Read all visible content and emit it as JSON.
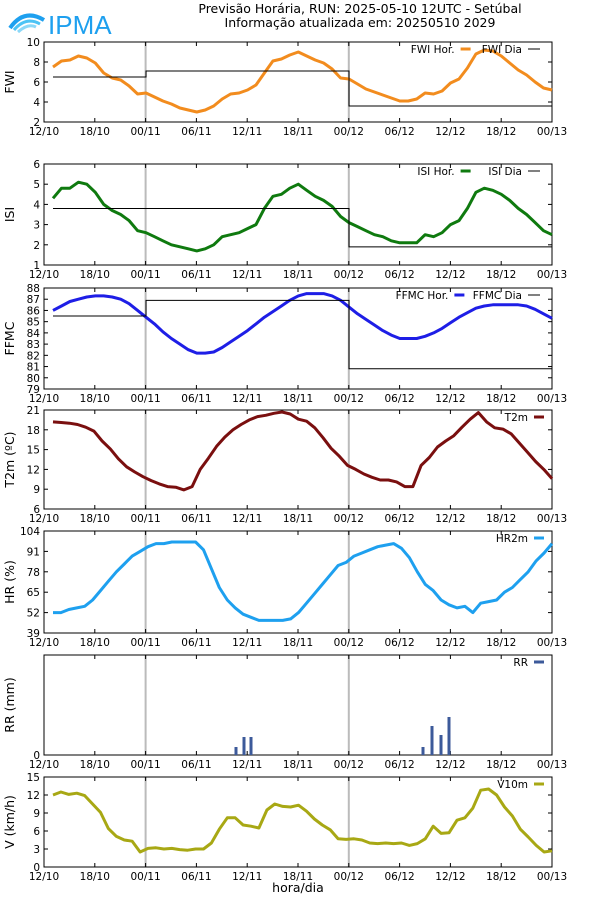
{
  "header": {
    "logo_text": "IPMA",
    "title": "Previsão Horária, RUN: 2025-05-10 12UTC - Setúbal",
    "subtitle": "Informação atualizada em: 20250510 2029"
  },
  "shared_x": {
    "tick_labels": [
      "12/10",
      "18/10",
      "00/11",
      "06/11",
      "12/11",
      "18/11",
      "00/12",
      "06/12",
      "12/12",
      "18/12",
      "00/13"
    ],
    "day_separators": [
      "00/11",
      "00/12"
    ],
    "xlabel": "hora/dia"
  },
  "colors": {
    "FWI": "#f28c1e",
    "ISI": "#0f7a0f",
    "FFMC": "#1e1ee6",
    "T2m": "#7a0f0f",
    "HR2m": "#1ea0ef",
    "RR": "#3c5a9a",
    "V10m": "#a8a814"
  },
  "chart_data": [
    {
      "type": "line",
      "ylabel": "FWI",
      "ylim": [
        2,
        10
      ],
      "yticks": [
        2,
        4,
        6,
        8,
        10
      ],
      "series": [
        {
          "name": "FWI Hor.",
          "values": [
            7.5,
            8.1,
            8.2,
            8.6,
            8.4,
            7.9,
            6.9,
            6.4,
            6.2,
            5.6,
            4.8,
            4.9,
            4.5,
            4.1,
            3.8,
            3.4,
            3.2,
            3.0,
            3.2,
            3.6,
            4.3,
            4.8,
            4.9,
            5.2,
            5.7,
            6.9,
            8.1,
            8.3,
            8.7,
            9.0,
            8.6,
            8.2,
            7.9,
            7.3,
            6.4,
            6.3,
            5.8,
            5.3,
            5.0,
            4.7,
            4.4,
            4.1,
            4.1,
            4.3,
            4.9,
            4.8,
            5.1,
            5.9,
            6.3,
            7.4,
            8.8,
            9.2,
            9.1,
            8.6,
            7.9,
            7.2,
            6.7,
            6.0,
            5.4,
            5.2
          ]
        },
        {
          "name": "FWI Dia",
          "step": [
            6.5,
            6.5,
            6.5,
            6.5,
            6.5,
            6.5,
            6.5,
            6.5,
            6.5,
            6.5,
            6.5,
            7.1,
            7.1,
            7.1,
            7.1,
            7.1,
            7.1,
            7.1,
            7.1,
            7.1,
            7.1,
            7.1,
            7.1,
            7.1,
            7.1,
            7.1,
            7.1,
            7.1,
            7.1,
            7.1,
            7.1,
            7.1,
            7.1,
            7.1,
            7.1,
            3.6,
            3.6,
            3.6,
            3.6,
            3.6,
            3.6,
            3.6,
            3.6,
            3.6,
            3.6,
            3.6,
            3.6,
            3.6,
            3.6,
            3.6,
            3.6,
            3.6,
            3.6,
            3.6,
            3.6,
            3.6,
            3.6,
            3.6,
            3.6,
            3.6
          ]
        }
      ]
    },
    {
      "type": "line",
      "ylabel": "ISI",
      "ylim": [
        1,
        6
      ],
      "yticks": [
        1,
        2,
        3,
        4,
        5,
        6
      ],
      "series": [
        {
          "name": "ISI Hor.",
          "values": [
            4.3,
            4.8,
            4.8,
            5.1,
            5.0,
            4.6,
            4.0,
            3.7,
            3.5,
            3.2,
            2.7,
            2.6,
            2.4,
            2.2,
            2.0,
            1.9,
            1.8,
            1.7,
            1.8,
            2.0,
            2.4,
            2.5,
            2.6,
            2.8,
            3.0,
            3.8,
            4.4,
            4.5,
            4.8,
            5.0,
            4.7,
            4.4,
            4.2,
            3.9,
            3.4,
            3.1,
            2.9,
            2.7,
            2.5,
            2.4,
            2.2,
            2.1,
            2.1,
            2.1,
            2.5,
            2.4,
            2.6,
            3.0,
            3.2,
            3.8,
            4.6,
            4.8,
            4.7,
            4.5,
            4.2,
            3.8,
            3.5,
            3.1,
            2.7,
            2.5
          ]
        },
        {
          "name": "ISI Dia",
          "step": [
            3.8,
            3.8,
            3.8,
            3.8,
            3.8,
            3.8,
            3.8,
            3.8,
            3.8,
            3.8,
            3.8,
            3.8,
            3.8,
            3.8,
            3.8,
            3.8,
            3.8,
            3.8,
            3.8,
            3.8,
            3.8,
            3.8,
            3.8,
            3.8,
            3.8,
            3.8,
            3.8,
            3.8,
            3.8,
            3.8,
            3.8,
            3.8,
            3.8,
            3.8,
            3.8,
            1.9,
            1.9,
            1.9,
            1.9,
            1.9,
            1.9,
            1.9,
            1.9,
            1.9,
            1.9,
            1.9,
            1.9,
            1.9,
            1.9,
            1.9,
            1.9,
            1.9,
            1.9,
            1.9,
            1.9,
            1.9,
            1.9,
            1.9,
            1.9,
            1.9
          ]
        }
      ]
    },
    {
      "type": "line",
      "ylabel": "FFMC",
      "ylim": [
        79,
        88
      ],
      "yticks": [
        79,
        80,
        81,
        82,
        83,
        84,
        85,
        86,
        87,
        88
      ],
      "series": [
        {
          "name": "FFMC Hor.",
          "values": [
            86.0,
            86.4,
            86.8,
            87.0,
            87.2,
            87.3,
            87.3,
            87.2,
            87.0,
            86.6,
            86.0,
            85.4,
            84.8,
            84.1,
            83.5,
            83.0,
            82.5,
            82.2,
            82.2,
            82.3,
            82.7,
            83.2,
            83.7,
            84.2,
            84.8,
            85.4,
            85.9,
            86.4,
            86.9,
            87.3,
            87.5,
            87.5,
            87.5,
            87.3,
            86.9,
            86.3,
            85.7,
            85.2,
            84.7,
            84.2,
            83.8,
            83.5,
            83.5,
            83.5,
            83.7,
            84.0,
            84.4,
            84.9,
            85.4,
            85.8,
            86.2,
            86.4,
            86.5,
            86.5,
            86.5,
            86.5,
            86.4,
            86.1,
            85.7,
            85.3
          ]
        },
        {
          "name": "FFMC Dia",
          "step": [
            85.5,
            85.5,
            85.5,
            85.5,
            85.5,
            85.5,
            85.5,
            85.5,
            85.5,
            85.5,
            85.5,
            86.9,
            86.9,
            86.9,
            86.9,
            86.9,
            86.9,
            86.9,
            86.9,
            86.9,
            86.9,
            86.9,
            86.9,
            86.9,
            86.9,
            86.9,
            86.9,
            86.9,
            86.9,
            86.9,
            86.9,
            86.9,
            86.9,
            86.9,
            86.9,
            80.8,
            80.8,
            80.8,
            80.8,
            80.8,
            80.8,
            80.8,
            80.8,
            80.8,
            80.8,
            80.8,
            80.8,
            80.8,
            80.8,
            80.8,
            80.8,
            80.8,
            80.8,
            80.8,
            80.8,
            80.8,
            80.8,
            80.8,
            80.8,
            80.8
          ]
        }
      ]
    },
    {
      "type": "line",
      "ylabel": "T2m (ºC)",
      "ylim": [
        6,
        21
      ],
      "yticks": [
        6,
        9,
        12,
        15,
        18,
        21
      ],
      "series": [
        {
          "name": "T2m",
          "values": [
            19.2,
            19.1,
            19.0,
            18.8,
            18.4,
            17.8,
            16.3,
            15.1,
            13.6,
            12.4,
            11.6,
            10.9,
            10.3,
            9.8,
            9.4,
            9.3,
            8.9,
            9.4,
            12.0,
            13.7,
            15.5,
            16.9,
            18.0,
            18.8,
            19.5,
            20.0,
            20.2,
            20.5,
            20.7,
            20.4,
            19.6,
            19.3,
            18.3,
            16.8,
            15.2,
            14.0,
            12.6,
            12.0,
            11.3,
            10.8,
            10.4,
            10.4,
            10.1,
            9.4,
            9.4,
            12.6,
            13.8,
            15.4,
            16.3,
            17.1,
            18.4,
            19.6,
            20.6,
            19.2,
            18.3,
            18.1,
            17.4,
            16.0,
            14.6,
            13.2,
            12.0,
            10.6
          ]
        }
      ]
    },
    {
      "type": "line",
      "ylabel": "HR (%)",
      "ylim": [
        39,
        104
      ],
      "yticks": [
        39,
        52,
        65,
        78,
        91,
        104
      ],
      "series": [
        {
          "name": "HR2m",
          "values": [
            52,
            52,
            54,
            55,
            56,
            60,
            66,
            72,
            78,
            83,
            88,
            91,
            94,
            96,
            96,
            97,
            97,
            97,
            97,
            92,
            80,
            68,
            60,
            55,
            51,
            49,
            47,
            47,
            47,
            47,
            48,
            52,
            58,
            64,
            70,
            76,
            82,
            84,
            88,
            90,
            92,
            94,
            95,
            96,
            93,
            87,
            78,
            70,
            66,
            60,
            57,
            55,
            56,
            52,
            58,
            59,
            60,
            65,
            68,
            73,
            78,
            85,
            90,
            96
          ]
        }
      ]
    },
    {
      "type": "bar",
      "ylabel": "RR (mm)",
      "ylim": [
        0,
        1
      ],
      "series": [
        {
          "name": "RR",
          "bars": [
            {
              "x": "11:00 00/11 +11h",
              "h": 11,
              "v": 0.08
            },
            {
              "h": 12,
              "v": 0.18
            },
            {
              "h": 13,
              "v": 0.18
            },
            {
              "h": 34,
              "v": 0.08
            },
            {
              "h": 35,
              "v": 0.29
            },
            {
              "h": 36,
              "v": 0.2
            },
            {
              "h": 37,
              "v": 0.38
            }
          ]
        }
      ]
    },
    {
      "type": "line",
      "ylabel": "V (km/h)",
      "ylim": [
        0,
        15
      ],
      "yticks": [
        0,
        3,
        6,
        9,
        12,
        15
      ],
      "series": [
        {
          "name": "V10m",
          "values": [
            12.0,
            12.5,
            12.1,
            12.3,
            11.9,
            10.5,
            9.1,
            6.4,
            5.1,
            4.5,
            4.3,
            2.5,
            3.1,
            3.2,
            3.0,
            3.1,
            2.9,
            2.8,
            3.0,
            3.0,
            4.0,
            6.3,
            8.2,
            8.2,
            7.0,
            6.8,
            6.5,
            9.5,
            10.5,
            10.1,
            10.0,
            10.3,
            9.3,
            8.0,
            7.0,
            6.2,
            4.7,
            4.6,
            4.7,
            4.5,
            4.0,
            3.9,
            4.0,
            3.9,
            4.0,
            3.6,
            3.9,
            4.7,
            6.8,
            5.6,
            5.7,
            7.8,
            8.2,
            9.8,
            12.8,
            13.0,
            12.0,
            10.0,
            8.5,
            6.3,
            5.0,
            3.6,
            2.5,
            2.7
          ]
        }
      ]
    }
  ]
}
